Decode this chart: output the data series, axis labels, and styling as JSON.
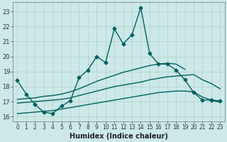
{
  "title": "",
  "xlabel": "Humidex (Indice chaleur)",
  "bg_color": "#cce8e8",
  "grid_color": "#b0d0c8",
  "line_color": "#006060",
  "xlim": [
    -0.5,
    23.5
  ],
  "ylim": [
    15.7,
    23.6
  ],
  "xticks": [
    0,
    1,
    2,
    3,
    4,
    5,
    6,
    7,
    8,
    9,
    10,
    11,
    12,
    13,
    14,
    15,
    16,
    17,
    18,
    19,
    20,
    21,
    22,
    23
  ],
  "yticks": [
    16,
    17,
    18,
    19,
    20,
    21,
    22,
    23
  ],
  "lines": [
    {
      "x": [
        0,
        1,
        2,
        3,
        4,
        5,
        6,
        7,
        8,
        9,
        10,
        11,
        12,
        13,
        14,
        15,
        16,
        17,
        18,
        19,
        20,
        21,
        22
      ],
      "y": [
        18.4,
        17.5,
        16.8,
        16.3,
        16.2,
        16.7,
        17.05,
        18.6,
        19.1,
        20.0,
        19.6,
        21.85,
        20.85,
        21.45,
        23.25,
        20.2,
        19.5,
        19.5,
        19.1,
        18.45,
        17.6,
        17.1,
        17.1
      ],
      "marker": "D",
      "markersize": 2.5,
      "linewidth": 1.0
    },
    {
      "x": [
        22,
        23
      ],
      "y": [
        17.1,
        17.05
      ],
      "marker": "D",
      "markersize": 2.5,
      "linewidth": 1.0
    },
    {
      "x": [
        0,
        1,
        2,
        3,
        4,
        5,
        6,
        7,
        8,
        9,
        10,
        11,
        12,
        13,
        14,
        15,
        16,
        17,
        18,
        19,
        20,
        21,
        22,
        23
      ],
      "y": [
        17.15,
        17.2,
        17.25,
        17.35,
        17.4,
        17.5,
        17.65,
        17.85,
        18.1,
        18.35,
        18.55,
        18.75,
        18.95,
        19.1,
        19.25,
        19.4,
        19.5,
        19.55,
        19.5,
        19.15,
        null,
        null,
        null,
        null
      ],
      "marker": null,
      "markersize": 0,
      "linewidth": 1.0
    },
    {
      "x": [
        0,
        1,
        2,
        3,
        4,
        5,
        6,
        7,
        8,
        9,
        10,
        11,
        12,
        13,
        14,
        15,
        16,
        17,
        18,
        19,
        20,
        21,
        22,
        23
      ],
      "y": [
        16.9,
        16.95,
        17.0,
        17.05,
        17.1,
        17.15,
        17.25,
        17.4,
        17.55,
        17.7,
        17.85,
        18.0,
        18.1,
        18.2,
        18.3,
        18.45,
        18.55,
        18.65,
        18.7,
        18.75,
        18.8,
        18.45,
        18.2,
        17.85
      ],
      "marker": null,
      "markersize": 0,
      "linewidth": 1.0
    },
    {
      "x": [
        0,
        1,
        2,
        3,
        4,
        5,
        6,
        7,
        8,
        9,
        10,
        11,
        12,
        13,
        14,
        15,
        16,
        17,
        18,
        19,
        20,
        21,
        22,
        23
      ],
      "y": [
        16.2,
        16.25,
        16.3,
        16.35,
        16.4,
        16.5,
        16.6,
        16.7,
        16.8,
        16.9,
        17.0,
        17.1,
        17.2,
        17.3,
        17.4,
        17.5,
        17.6,
        17.65,
        17.7,
        17.7,
        17.65,
        17.3,
        17.1,
        16.95
      ],
      "marker": null,
      "markersize": 0,
      "linewidth": 1.0
    }
  ]
}
